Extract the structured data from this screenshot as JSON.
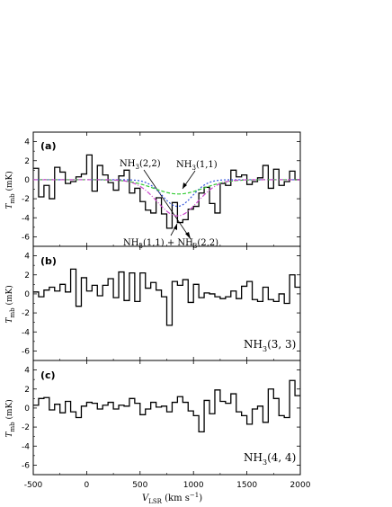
{
  "chart_data": [
    {
      "type": "line",
      "panel_label": "(a)",
      "xlabel": "V_LSR (km s^-1)",
      "ylabel": "T_mb (mK)",
      "xlim": [
        -500,
        2000
      ],
      "ylim": [
        -7,
        5
      ],
      "xticks": [
        -500,
        0,
        500,
        1000,
        1500,
        2000
      ],
      "yticks": [
        4,
        2,
        0,
        -2,
        -4,
        -6
      ],
      "grid": false,
      "series": [
        {
          "name": "",
          "style": "step",
          "color": "#000000",
          "x": [
            -500,
            -450,
            -400,
            -350,
            -300,
            -250,
            -200,
            -150,
            -100,
            -50,
            0,
            50,
            100,
            150,
            200,
            250,
            300,
            350,
            400,
            450,
            500,
            550,
            600,
            650,
            700,
            750,
            800,
            850,
            900,
            950,
            1000,
            1050,
            1100,
            1150,
            1200,
            1250,
            1300,
            1350,
            1400,
            1450,
            1500,
            1550,
            1600,
            1650,
            1700,
            1750,
            1800,
            1850,
            1900,
            1950
          ],
          "y": [
            1.2,
            -1.8,
            -0.6,
            -2.0,
            1.3,
            0.8,
            -0.4,
            -0.2,
            0.3,
            0.6,
            2.6,
            -1.2,
            1.5,
            0.5,
            -0.3,
            -1.1,
            0.4,
            1.0,
            -1.4,
            -0.9,
            -2.3,
            -3.2,
            -3.5,
            -1.9,
            -3.6,
            -5.1,
            -2.4,
            -4.5,
            -4.2,
            -3.1,
            -2.8,
            -1.4,
            -0.8,
            -2.5,
            -3.5,
            -0.4,
            -0.6,
            1.0,
            0.3,
            0.5,
            -0.5,
            -0.2,
            0.2,
            1.5,
            -0.9,
            1.1,
            -0.6,
            -0.2,
            0.9,
            0.0
          ]
        },
        {
          "name": "NH3(1,1)",
          "style": "dotted",
          "color": "#3355dd",
          "center": 850,
          "sigma": 140,
          "amplitude": -2.8
        },
        {
          "name": "NH3(2,2)",
          "style": "dashed",
          "color": "#33cc33",
          "center": 860,
          "sigma": 230,
          "amplitude": -1.5
        },
        {
          "name": "NH3(1,1) + NH3(2,2)",
          "style": "dash-dot",
          "color": "#cc44cc",
          "center": 850,
          "sigma": 190,
          "amplitude": -3.8
        }
      ],
      "annotations": {
        "a1_main": "NH",
        "a1_sub": "3",
        "a1_rest": "(2,2)",
        "a2_main": "NH",
        "a2_sub": "3",
        "a2_rest": "(1,1)",
        "a3_main": "NH",
        "a3_sub": "3",
        "a3_rest": "(1,1) + NH",
        "a3_sub2": "3",
        "a3_rest2": "(2,2)"
      }
    },
    {
      "type": "line",
      "panel_label": "(b)",
      "ylabel": "T_mb (mK)",
      "xlim": [
        -500,
        2000
      ],
      "ylim": [
        -7,
        5
      ],
      "legend_main": "NH",
      "legend_sub": "3",
      "legend_rest": "(3, 3)",
      "series": [
        {
          "name": "",
          "style": "step",
          "color": "#000000",
          "x": [
            -500,
            -450,
            -400,
            -350,
            -300,
            -250,
            -200,
            -150,
            -100,
            -50,
            0,
            50,
            100,
            150,
            200,
            250,
            300,
            350,
            400,
            450,
            500,
            550,
            600,
            650,
            700,
            750,
            800,
            850,
            900,
            950,
            1000,
            1050,
            1100,
            1150,
            1200,
            1250,
            1300,
            1350,
            1400,
            1450,
            1500,
            1550,
            1600,
            1650,
            1700,
            1750,
            1800,
            1850,
            1900,
            1950
          ],
          "y": [
            0.2,
            -0.3,
            0.4,
            0.7,
            0.3,
            1.0,
            0.2,
            2.6,
            -1.3,
            1.7,
            0.3,
            0.9,
            -0.2,
            0.9,
            1.6,
            -0.4,
            2.3,
            -0.7,
            2.2,
            -0.8,
            2.2,
            0.6,
            1.2,
            0.4,
            -0.3,
            -3.3,
            1.3,
            0.9,
            1.5,
            -0.9,
            1.0,
            -0.4,
            0.1,
            0.0,
            -0.3,
            -0.5,
            -0.3,
            0.3,
            -0.5,
            0.8,
            1.3,
            -0.6,
            -0.8,
            0.7,
            -0.6,
            -0.8,
            0.0,
            -1.0,
            2.0,
            0.7
          ]
        }
      ]
    },
    {
      "type": "line",
      "panel_label": "(c)",
      "ylabel": "T_mb (mK)",
      "xlim": [
        -500,
        2000
      ],
      "ylim": [
        -7,
        5
      ],
      "legend_main": "NH",
      "legend_sub": "3",
      "legend_rest": "(4, 4)",
      "series": [
        {
          "name": "",
          "style": "step",
          "color": "#000000",
          "x": [
            -500,
            -450,
            -400,
            -350,
            -300,
            -250,
            -200,
            -150,
            -100,
            -50,
            0,
            50,
            100,
            150,
            200,
            250,
            300,
            350,
            400,
            450,
            500,
            550,
            600,
            650,
            700,
            750,
            800,
            850,
            900,
            950,
            1000,
            1050,
            1100,
            1150,
            1200,
            1250,
            1300,
            1350,
            1400,
            1450,
            1500,
            1550,
            1600,
            1650,
            1700,
            1750,
            1800,
            1850,
            1900,
            1950
          ],
          "y": [
            0.3,
            1.0,
            1.1,
            -0.2,
            0.4,
            -0.5,
            0.7,
            -0.4,
            -1.0,
            0.2,
            0.6,
            0.5,
            -0.1,
            0.3,
            0.6,
            -0.1,
            0.3,
            0.2,
            1.0,
            0.5,
            -0.7,
            -0.1,
            0.6,
            0.1,
            0.2,
            -0.4,
            0.6,
            1.2,
            0.6,
            -0.3,
            -0.8,
            -2.5,
            0.8,
            -0.6,
            1.9,
            0.7,
            0.5,
            1.5,
            -0.4,
            -0.8,
            -1.7,
            -0.1,
            0.2,
            -1.5,
            2.0,
            1.0,
            -0.8,
            -1.0,
            2.9,
            1.3
          ]
        }
      ]
    }
  ],
  "tick_labels": {
    "x": [
      "-500",
      "0",
      "500",
      "1000",
      "1500",
      "2000"
    ],
    "y": [
      "4",
      "2",
      "0",
      "-2",
      "-4",
      "-6"
    ]
  },
  "axis_text": {
    "ylabel_main": "T",
    "ylabel_sub": "mb",
    "ylabel_unit": " (mK)",
    "xlabel_main": "V",
    "xlabel_sub": "LSR",
    "xlabel_unit": " (km s",
    "xlabel_sup": "−1",
    "xlabel_close": ")"
  },
  "colors": {
    "nh3_11": "#3355dd",
    "nh3_22": "#33cc33",
    "sum": "#cc44cc",
    "spectrum": "#000000"
  }
}
